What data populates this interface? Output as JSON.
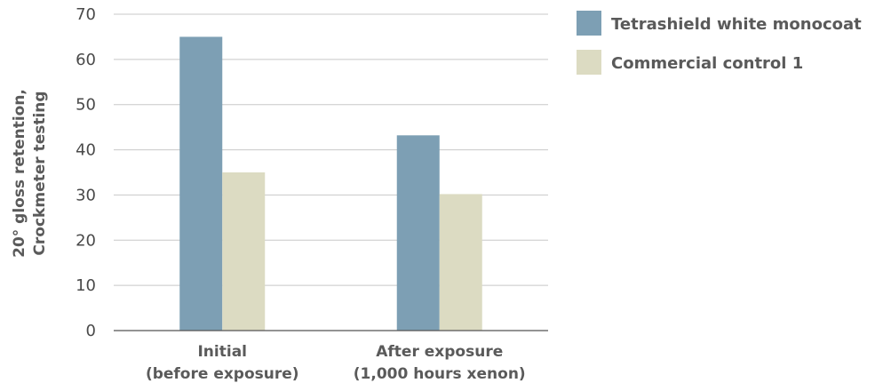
{
  "chart_data": {
    "type": "bar",
    "categories": [
      [
        "Initial",
        "(before exposure)"
      ],
      [
        "After exposure",
        "(1,000 hours xenon)"
      ]
    ],
    "series": [
      {
        "name": "Tetrashield white monocoat",
        "values": [
          65,
          43.2
        ],
        "color": "#7d9fb4"
      },
      {
        "name": "Commercial control 1",
        "values": [
          35,
          30.2
        ],
        "color": "#dcdbc2"
      }
    ],
    "ylabel": [
      "20° gloss retention,",
      "Crockmeter testing"
    ],
    "xlabel": "",
    "ylim": [
      0,
      70
    ],
    "yticks": [
      0,
      10,
      20,
      30,
      40,
      50,
      60,
      70
    ],
    "grid": true,
    "legend": "top-right"
  }
}
